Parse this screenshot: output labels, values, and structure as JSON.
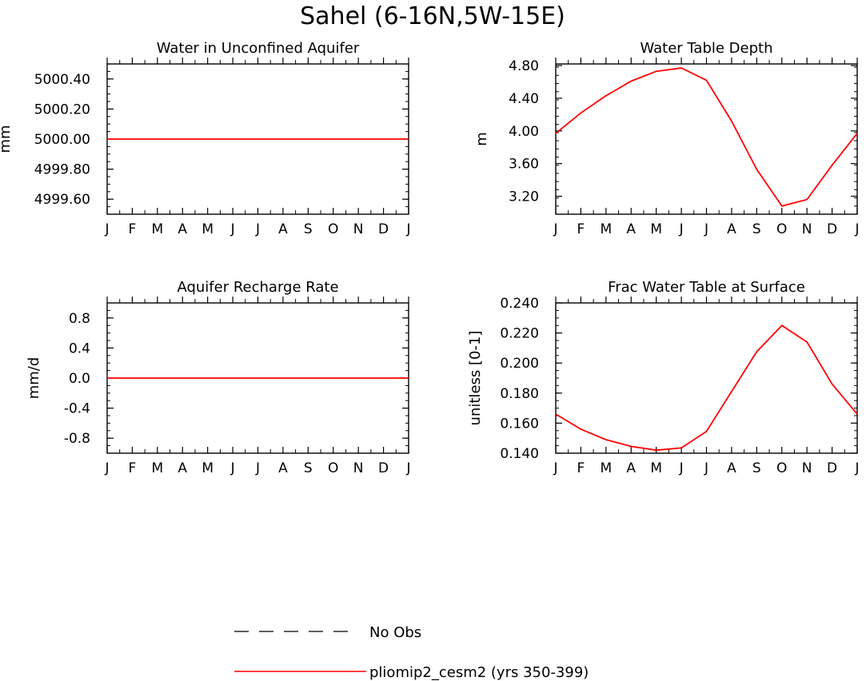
{
  "title": "Sahel (6-16N,5W-15E)",
  "legend": {
    "items": [
      {
        "label": "No Obs",
        "style": "dashed",
        "color": "#000000"
      },
      {
        "label": "pliomip2_cesm2 (yrs 350-399)",
        "style": "solid",
        "color": "#ff0000"
      }
    ]
  },
  "colors": {
    "series": "#ff0000",
    "axes": "#000000"
  },
  "chart_data": [
    {
      "type": "line",
      "title": "Water in Unconfined Aquifer",
      "ylabel": "mm",
      "x": [
        "J",
        "F",
        "M",
        "A",
        "M",
        "J",
        "J",
        "A",
        "S",
        "O",
        "N",
        "D",
        "J"
      ],
      "ylim": [
        4999.5,
        5000.5
      ],
      "yticks": [
        4999.6,
        4999.8,
        5000.0,
        5000.2,
        5000.4
      ],
      "ytick_labels": [
        "4999.60",
        "4999.80",
        "5000.00",
        "5000.20",
        "5000.40"
      ],
      "series": [
        {
          "values": [
            5000,
            5000,
            5000,
            5000,
            5000,
            5000,
            5000,
            5000,
            5000,
            5000,
            5000,
            5000,
            5000
          ]
        }
      ]
    },
    {
      "type": "line",
      "title": "Water Table Depth",
      "ylabel": "m",
      "x": [
        "J",
        "F",
        "M",
        "A",
        "M",
        "J",
        "J",
        "A",
        "S",
        "O",
        "N",
        "D",
        "J"
      ],
      "ylim": [
        2.98,
        4.82
      ],
      "yticks": [
        3.2,
        3.6,
        4.0,
        4.4,
        4.8
      ],
      "ytick_labels": [
        "3.20",
        "3.60",
        "4.00",
        "4.40",
        "4.80"
      ],
      "series": [
        {
          "values": [
            3.97,
            4.22,
            4.43,
            4.61,
            4.73,
            4.77,
            4.62,
            4.12,
            3.53,
            3.08,
            3.16,
            3.58,
            3.97
          ]
        }
      ]
    },
    {
      "type": "line",
      "title": "Aquifer Recharge Rate",
      "ylabel": "mm/d",
      "x": [
        "J",
        "F",
        "M",
        "A",
        "M",
        "J",
        "J",
        "A",
        "S",
        "O",
        "N",
        "D",
        "J"
      ],
      "ylim": [
        -1.0,
        1.0
      ],
      "yticks": [
        -0.8,
        -0.4,
        0.0,
        0.4,
        0.8
      ],
      "ytick_labels": [
        "-0.8",
        "-0.4",
        "0.0",
        "0.4",
        "0.8"
      ],
      "series": [
        {
          "values": [
            0,
            0,
            0,
            0,
            0,
            0,
            0,
            0,
            0,
            0,
            0,
            0,
            0
          ]
        }
      ]
    },
    {
      "type": "line",
      "title": "Frac Water Table at Surface",
      "ylabel": "unitless [0-1]",
      "x": [
        "J",
        "F",
        "M",
        "A",
        "M",
        "J",
        "J",
        "A",
        "S",
        "O",
        "N",
        "D",
        "J"
      ],
      "ylim": [
        0.14,
        0.24
      ],
      "yticks": [
        0.14,
        0.16,
        0.18,
        0.2,
        0.22,
        0.24
      ],
      "ytick_labels": [
        "0.140",
        "0.160",
        "0.180",
        "0.200",
        "0.220",
        "0.240"
      ],
      "series": [
        {
          "values": [
            0.166,
            0.156,
            0.149,
            0.1445,
            0.142,
            0.1435,
            0.1545,
            0.181,
            0.2075,
            0.225,
            0.214,
            0.186,
            0.166
          ]
        }
      ]
    }
  ]
}
